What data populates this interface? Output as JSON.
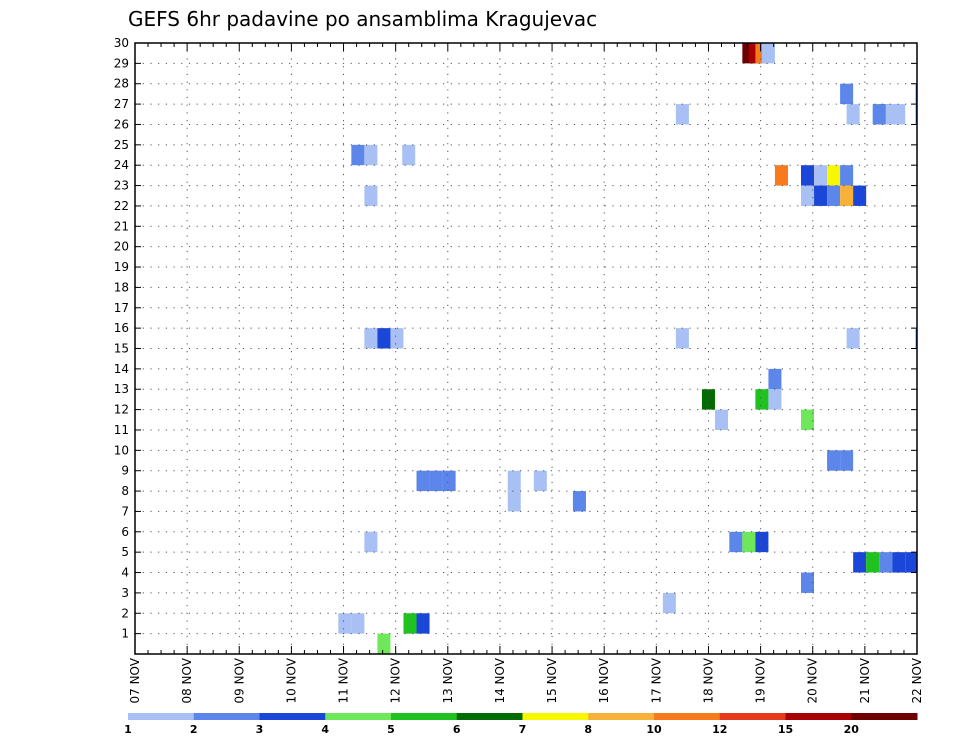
{
  "chart_data": {
    "type": "heatmap",
    "title": "GEFS 6hr padavine po ansamblima Kragujevac",
    "xlabel": "",
    "ylabel": "",
    "x_ticks": [
      "07 NOV",
      "08 NOV",
      "09 NOV",
      "10 NOV",
      "11 NOV",
      "12 NOV",
      "13 NOV",
      "14 NOV",
      "15 NOV",
      "16 NOV",
      "17 NOV",
      "18 NOV",
      "19 NOV",
      "20 NOV",
      "21 NOV",
      "22 NOV"
    ],
    "y_ticks": [
      "1",
      "2",
      "3",
      "4",
      "5",
      "6",
      "7",
      "8",
      "9",
      "10",
      "11",
      "12",
      "13",
      "14",
      "15",
      "16",
      "17",
      "18",
      "19",
      "20",
      "21",
      "22",
      "23",
      "24",
      "25",
      "26",
      "27",
      "28",
      "29",
      "30"
    ],
    "xlim": [
      0,
      60
    ],
    "ylim": [
      0,
      30
    ],
    "grid": true,
    "colorbar": {
      "labels": [
        "1",
        "2",
        "3",
        "4",
        "5",
        "6",
        "7",
        "8",
        "10",
        "12",
        "15",
        "20"
      ],
      "colors": [
        "#a9c0f4",
        "#5c86ea",
        "#1b47d8",
        "#6ee85a",
        "#1fc21f",
        "#036b03",
        "#f7f700",
        "#f7b038",
        "#f77a1c",
        "#e6391c",
        "#a80000",
        "#6e0000"
      ]
    },
    "cells": [
      {
        "t": 46.6,
        "m": 29,
        "l": 11
      },
      {
        "t": 47.1,
        "m": 29,
        "l": 10
      },
      {
        "t": 47.6,
        "m": 29,
        "l": 8
      },
      {
        "t": 48.1,
        "m": 29,
        "l": 0
      },
      {
        "t": 54.1,
        "m": 27,
        "l": 1
      },
      {
        "t": 59.9,
        "m": 27,
        "l": 2
      },
      {
        "t": 41.5,
        "m": 26,
        "l": 0
      },
      {
        "t": 54.6,
        "m": 26,
        "l": 0
      },
      {
        "t": 56.6,
        "m": 26,
        "l": 1
      },
      {
        "t": 57.1,
        "m": 26,
        "l": 1
      },
      {
        "t": 57.6,
        "m": 26,
        "l": 0
      },
      {
        "t": 58.1,
        "m": 26,
        "l": 0
      },
      {
        "t": 59.9,
        "m": 26,
        "l": 2
      },
      {
        "t": 16.6,
        "m": 24,
        "l": 1
      },
      {
        "t": 17.6,
        "m": 24,
        "l": 0
      },
      {
        "t": 20.5,
        "m": 24,
        "l": 0
      },
      {
        "t": 49.1,
        "m": 23,
        "l": 8
      },
      {
        "t": 51.1,
        "m": 23,
        "l": 2
      },
      {
        "t": 52.1,
        "m": 23,
        "l": 0
      },
      {
        "t": 53.1,
        "m": 23,
        "l": 6
      },
      {
        "t": 54.1,
        "m": 23,
        "l": 1
      },
      {
        "t": 17.6,
        "m": 22,
        "l": 0
      },
      {
        "t": 51.1,
        "m": 22,
        "l": 0
      },
      {
        "t": 52.1,
        "m": 22,
        "l": 2
      },
      {
        "t": 53.1,
        "m": 22,
        "l": 1
      },
      {
        "t": 54.1,
        "m": 22,
        "l": 7
      },
      {
        "t": 55.1,
        "m": 22,
        "l": 2
      },
      {
        "t": 17.6,
        "m": 15,
        "l": 0
      },
      {
        "t": 18.6,
        "m": 15,
        "l": 2
      },
      {
        "t": 19.6,
        "m": 15,
        "l": 0
      },
      {
        "t": 41.5,
        "m": 15,
        "l": 0
      },
      {
        "t": 54.6,
        "m": 15,
        "l": 0
      },
      {
        "t": 59.9,
        "m": 15,
        "l": 2
      },
      {
        "t": 48.6,
        "m": 13,
        "l": 1
      },
      {
        "t": 43.5,
        "m": 12,
        "l": 5
      },
      {
        "t": 47.6,
        "m": 12,
        "l": 4
      },
      {
        "t": 48.6,
        "m": 12,
        "l": 0
      },
      {
        "t": 44.5,
        "m": 11,
        "l": 0
      },
      {
        "t": 51.1,
        "m": 11,
        "l": 3
      },
      {
        "t": 53.1,
        "m": 9,
        "l": 1
      },
      {
        "t": 54.1,
        "m": 9,
        "l": 1
      },
      {
        "t": 21.6,
        "m": 8,
        "l": 1
      },
      {
        "t": 22.6,
        "m": 8,
        "l": 1
      },
      {
        "t": 23.6,
        "m": 8,
        "l": 1
      },
      {
        "t": 28.6,
        "m": 8,
        "l": 0
      },
      {
        "t": 30.6,
        "m": 8,
        "l": 0
      },
      {
        "t": 28.6,
        "m": 7,
        "l": 0
      },
      {
        "t": 33.6,
        "m": 7,
        "l": 1
      },
      {
        "t": 17.6,
        "m": 5,
        "l": 0
      },
      {
        "t": 45.6,
        "m": 5,
        "l": 1
      },
      {
        "t": 46.6,
        "m": 5,
        "l": 3
      },
      {
        "t": 47.6,
        "m": 5,
        "l": 2
      },
      {
        "t": 55.1,
        "m": 4,
        "l": 2
      },
      {
        "t": 56.1,
        "m": 4,
        "l": 4
      },
      {
        "t": 57.1,
        "m": 4,
        "l": 1
      },
      {
        "t": 58.1,
        "m": 4,
        "l": 2
      },
      {
        "t": 59.1,
        "m": 4,
        "l": 2
      },
      {
        "t": 59.9,
        "m": 4,
        "l": 2
      },
      {
        "t": 51.1,
        "m": 3,
        "l": 1
      },
      {
        "t": 40.5,
        "m": 2,
        "l": 0
      },
      {
        "t": 15.6,
        "m": 1,
        "l": 0
      },
      {
        "t": 16.6,
        "m": 1,
        "l": 0
      },
      {
        "t": 20.6,
        "m": 1,
        "l": 4
      },
      {
        "t": 21.6,
        "m": 1,
        "l": 2
      },
      {
        "t": 18.6,
        "m": 0,
        "l": 3
      }
    ]
  }
}
